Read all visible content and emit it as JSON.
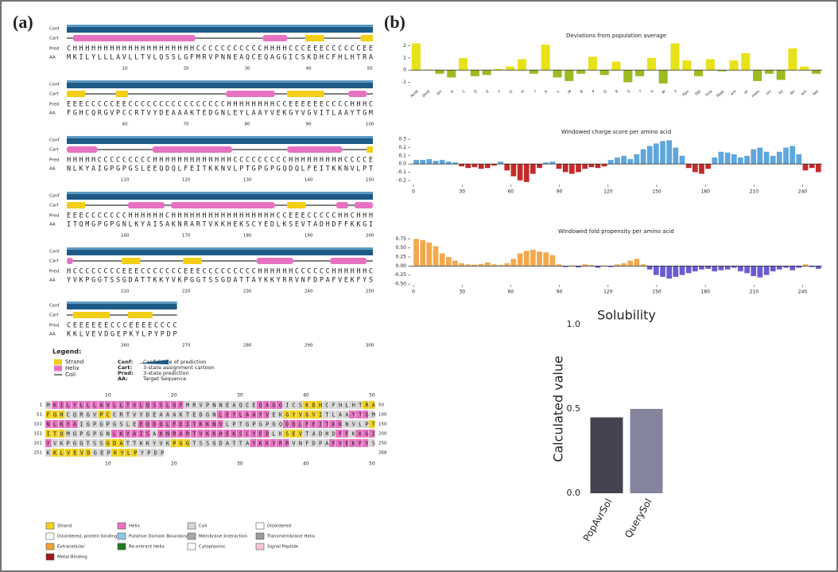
{
  "panel_a": {
    "label": "(a)",
    "row_labels": [
      "Conf",
      "Cart",
      "Pred",
      "AA"
    ],
    "blocks": [
      {
        "pred": "CHHHHHHHHHHHHHHHHHHHHCCCCCCCCCCCHHHHCCCEEECCCCCCEE",
        "aa": "MKILYLLLAVLLTVLQSSLGFMRVPNNEAQCEQAGGICSKDHCFHLHTRA",
        "ticks": [
          10,
          20,
          30,
          40,
          50
        ]
      },
      {
        "pred": "EEECCCCCEECCCCCCCCCCCCCCCCHHHHHHHHCCEEEEEECCCCHHHC",
        "aa": "FGHCQRGVPCCRTVYDEAAAKTEDGNLEYLAAYVEKGYVGVITLAAYTGM",
        "ticks": [
          60,
          70,
          80,
          90,
          100
        ]
      },
      {
        "pred": "HHHHHCCCCCCCCCHHHHHHHHHHHHHCCCCCCCCCHHHHHHHHHCCCCE",
        "aa": "NLKYAIGPGPGSLEEQDQLFEITKKNVLPTGPGPGQDQLFEITKKNVLPT",
        "ticks": [
          110,
          120,
          130,
          140,
          150
        ]
      },
      {
        "pred": "EEECCCCCCCHHHHHHCHHHHHHHHHHHHHHHHHCCEEECCCCCHHCHHH",
        "aa": "ITQMGPGPGNLKYAISAKNRARTVKKHEKSCYEDLKSEVTADHDFFKKGI",
        "ticks": [
          160,
          170,
          180,
          190,
          200
        ]
      },
      {
        "pred": "HCCCCCCCCEEECCCCCCCEEECCCCCCCCCHHHHHHCCCCCCHHHHHHC",
        "aa": "YVKPGGTSSGDATTKKYVKPGGTSSGDATTAYKKYRRVNFDPAFVEKFYS",
        "ticks": [
          210,
          220,
          230,
          240,
          250
        ]
      },
      {
        "pred": "CEEEEEECCCEEEECCCC",
        "aa": "KKLVEVDGEPKYLPYPDP",
        "ticks": [
          260,
          270,
          280,
          290,
          300
        ]
      }
    ],
    "legend": {
      "title": "Legend:",
      "states": [
        {
          "label": "Strand",
          "color": "#f2cf16"
        },
        {
          "label": "Helix",
          "color": "#e872c2"
        },
        {
          "label": "Coil",
          "color": "#555555"
        }
      ],
      "keys": [
        {
          "key": "Conf:",
          "text": "Confidence of prediction"
        },
        {
          "key": "Cart:",
          "text": "3-state assignment cartoon"
        },
        {
          "key": "Pred:",
          "text": "3-state prediction"
        },
        {
          "key": "AA:",
          "text": "Target Sequence"
        }
      ]
    },
    "sequence_map": {
      "ruler": [
        10,
        20,
        30,
        40,
        50
      ],
      "rows": [
        {
          "start": 1,
          "end": 50
        },
        {
          "start": 51,
          "end": 100
        },
        {
          "start": 101,
          "end": 150
        },
        {
          "start": 151,
          "end": 200
        },
        {
          "start": 201,
          "end": 250
        },
        {
          "start": 251,
          "end": 268
        }
      ]
    },
    "feature_legend": [
      [
        {
          "label": "Strand",
          "color": "#f2d21c"
        },
        {
          "label": "Disordered, protein binding",
          "color": "#ffffff"
        },
        {
          "label": "Extracellular",
          "color": "#f0a030"
        },
        {
          "label": "Metal Binding",
          "color": "#a01818"
        }
      ],
      [
        {
          "label": "Helix",
          "color": "#e872c2"
        },
        {
          "label": "Putative Domain Boundary",
          "color": "#8ec5e6"
        },
        {
          "label": "Re-entrant Helix",
          "color": "#1f7a1f"
        }
      ],
      [
        {
          "label": "Coil",
          "color": "#d6d6d6"
        },
        {
          "label": "Membrane Interaction",
          "color": "#a8a8a8"
        },
        {
          "label": "Cytoplasmic",
          "color": "#ffffff"
        }
      ],
      [
        {
          "label": "Disordered",
          "color": "#ffffff"
        },
        {
          "label": "Transmembrane Helix",
          "color": "#9a9a9a"
        },
        {
          "label": "Signal Peptide",
          "color": "#f7c6d8"
        }
      ]
    ]
  },
  "panel_b": {
    "label": "(b)"
  },
  "chart_data": [
    {
      "type": "bar",
      "title": "Deviations from population average",
      "categories": [
        "AvnR",
        "DnrE",
        "len",
        "A",
        "C",
        "D",
        "E",
        "F",
        "G",
        "H",
        "I",
        "K",
        "L",
        "M",
        "N",
        "P",
        "Q",
        "R",
        "S",
        "T",
        "V",
        "W",
        "Y",
        "Kpn",
        "Dpl",
        "Frnk",
        "Pppk",
        "aro",
        "pI",
        "mem",
        "chr",
        "fol",
        "dis",
        "ent",
        "bet"
      ],
      "values": [
        2.2,
        0.05,
        -0.3,
        -0.6,
        1.0,
        -0.5,
        -0.4,
        0.1,
        0.3,
        0.9,
        -0.3,
        2.1,
        -0.6,
        -0.9,
        -0.3,
        1.1,
        -0.4,
        0.7,
        -1.0,
        -0.5,
        1.0,
        -1.1,
        2.2,
        0.8,
        -0.5,
        0.9,
        -0.1,
        0.8,
        1.4,
        -0.9,
        -0.3,
        -0.8,
        1.8,
        0.3,
        -0.3
      ],
      "positive_color": "#e8e21a",
      "negative_color": "#9cba22",
      "ylim": [
        -1.3,
        2.5
      ],
      "yticks": [
        -1,
        0,
        1,
        2
      ]
    },
    {
      "type": "bar",
      "title": "Windowed charge score per amino acid",
      "x": [
        0,
        4,
        8,
        12,
        16,
        20,
        24,
        28,
        32,
        36,
        40,
        44,
        48,
        52,
        56,
        60,
        64,
        68,
        72,
        76,
        80,
        84,
        88,
        92,
        96,
        100,
        104,
        108,
        112,
        116,
        120,
        124,
        128,
        132,
        136,
        140,
        144,
        148,
        152,
        156,
        160,
        164,
        168,
        172,
        176,
        180,
        184,
        188,
        192,
        196,
        200,
        204,
        208,
        212,
        216,
        220,
        224,
        228,
        232,
        236,
        240,
        244,
        248
      ],
      "values": [
        0.05,
        0.05,
        0.06,
        0.04,
        0.05,
        0.03,
        0.02,
        -0.03,
        -0.05,
        -0.04,
        -0.06,
        -0.05,
        -0.02,
        0.03,
        -0.08,
        -0.15,
        -0.2,
        -0.22,
        -0.12,
        -0.05,
        0.02,
        0.03,
        -0.06,
        -0.1,
        -0.12,
        -0.1,
        -0.06,
        -0.04,
        -0.05,
        -0.03,
        0.05,
        0.08,
        0.1,
        0.06,
        0.12,
        0.18,
        0.22,
        0.25,
        0.28,
        0.29,
        0.2,
        0.1,
        -0.05,
        -0.1,
        -0.12,
        -0.06,
        0.08,
        0.15,
        0.14,
        0.12,
        0.08,
        0.1,
        0.18,
        0.2,
        0.15,
        0.1,
        0.15,
        0.2,
        0.22,
        0.12,
        -0.08,
        -0.05,
        -0.1
      ],
      "positive_color": "#5fa6dc",
      "negative_color": "#c42a2a",
      "xlim": [
        -2,
        252
      ],
      "xticks": [
        0,
        30,
        60,
        90,
        120,
        150,
        180,
        210,
        240
      ],
      "ylim": [
        -0.25,
        0.33
      ],
      "yticks": [
        -0.2,
        -0.1,
        {
          "value": 0,
          "label": "0.0"
        },
        0.1,
        0.2,
        0.3
      ]
    },
    {
      "type": "bar",
      "title": "Windowed fold propensity per amino acid",
      "x": [
        0,
        4,
        8,
        12,
        16,
        20,
        24,
        28,
        32,
        36,
        40,
        44,
        48,
        52,
        56,
        60,
        64,
        68,
        72,
        76,
        80,
        84,
        88,
        92,
        96,
        100,
        104,
        108,
        112,
        116,
        120,
        124,
        128,
        132,
        136,
        140,
        144,
        148,
        152,
        156,
        160,
        164,
        168,
        172,
        176,
        180,
        184,
        188,
        192,
        196,
        200,
        204,
        208,
        212,
        216,
        220,
        224,
        228,
        232,
        236,
        240,
        244,
        248
      ],
      "values": [
        0.75,
        0.72,
        0.65,
        0.55,
        0.35,
        0.25,
        0.15,
        0.08,
        0.05,
        0.04,
        0.06,
        0.1,
        0.05,
        0.03,
        0.08,
        0.2,
        0.35,
        0.42,
        0.45,
        0.4,
        0.38,
        0.3,
        0.05,
        -0.03,
        0.02,
        -0.04,
        0.05,
        0.03,
        -0.05,
        0.02,
        -0.03,
        0.05,
        0.08,
        0.15,
        0.2,
        0.05,
        -0.1,
        -0.25,
        -0.3,
        -0.35,
        -0.3,
        -0.25,
        -0.2,
        -0.15,
        -0.1,
        -0.08,
        -0.15,
        -0.12,
        -0.1,
        -0.05,
        -0.15,
        -0.2,
        -0.28,
        -0.32,
        -0.25,
        -0.15,
        -0.1,
        -0.05,
        -0.12,
        -0.05,
        0.05,
        -0.03,
        -0.08
      ],
      "positive_color": "#f2a94c",
      "negative_color": "#6a5bd0",
      "xlim": [
        -2,
        252
      ],
      "xticks": [
        0,
        30,
        60,
        90,
        120,
        150,
        180,
        210,
        240
      ],
      "ylim": [
        -0.52,
        0.8
      ],
      "yticks": [
        {
          "value": -0.5,
          "label": "-0.50"
        },
        -0.25,
        {
          "value": 0,
          "label": "0.00"
        },
        0.25,
        {
          "value": 0.5,
          "label": "0.50"
        },
        0.75
      ]
    },
    {
      "type": "bar",
      "title": "Solubility",
      "ylabel": "Calculated value",
      "categories": [
        "PopAvrSol",
        "QuerySol"
      ],
      "values": [
        0.45,
        0.5
      ],
      "colors": [
        "#45434f",
        "#85849f"
      ],
      "ylim": [
        0,
        1
      ],
      "yticks": [
        {
          "value": 0,
          "label": "0.0"
        },
        0.5,
        {
          "value": 1,
          "label": "1.0"
        }
      ]
    }
  ]
}
